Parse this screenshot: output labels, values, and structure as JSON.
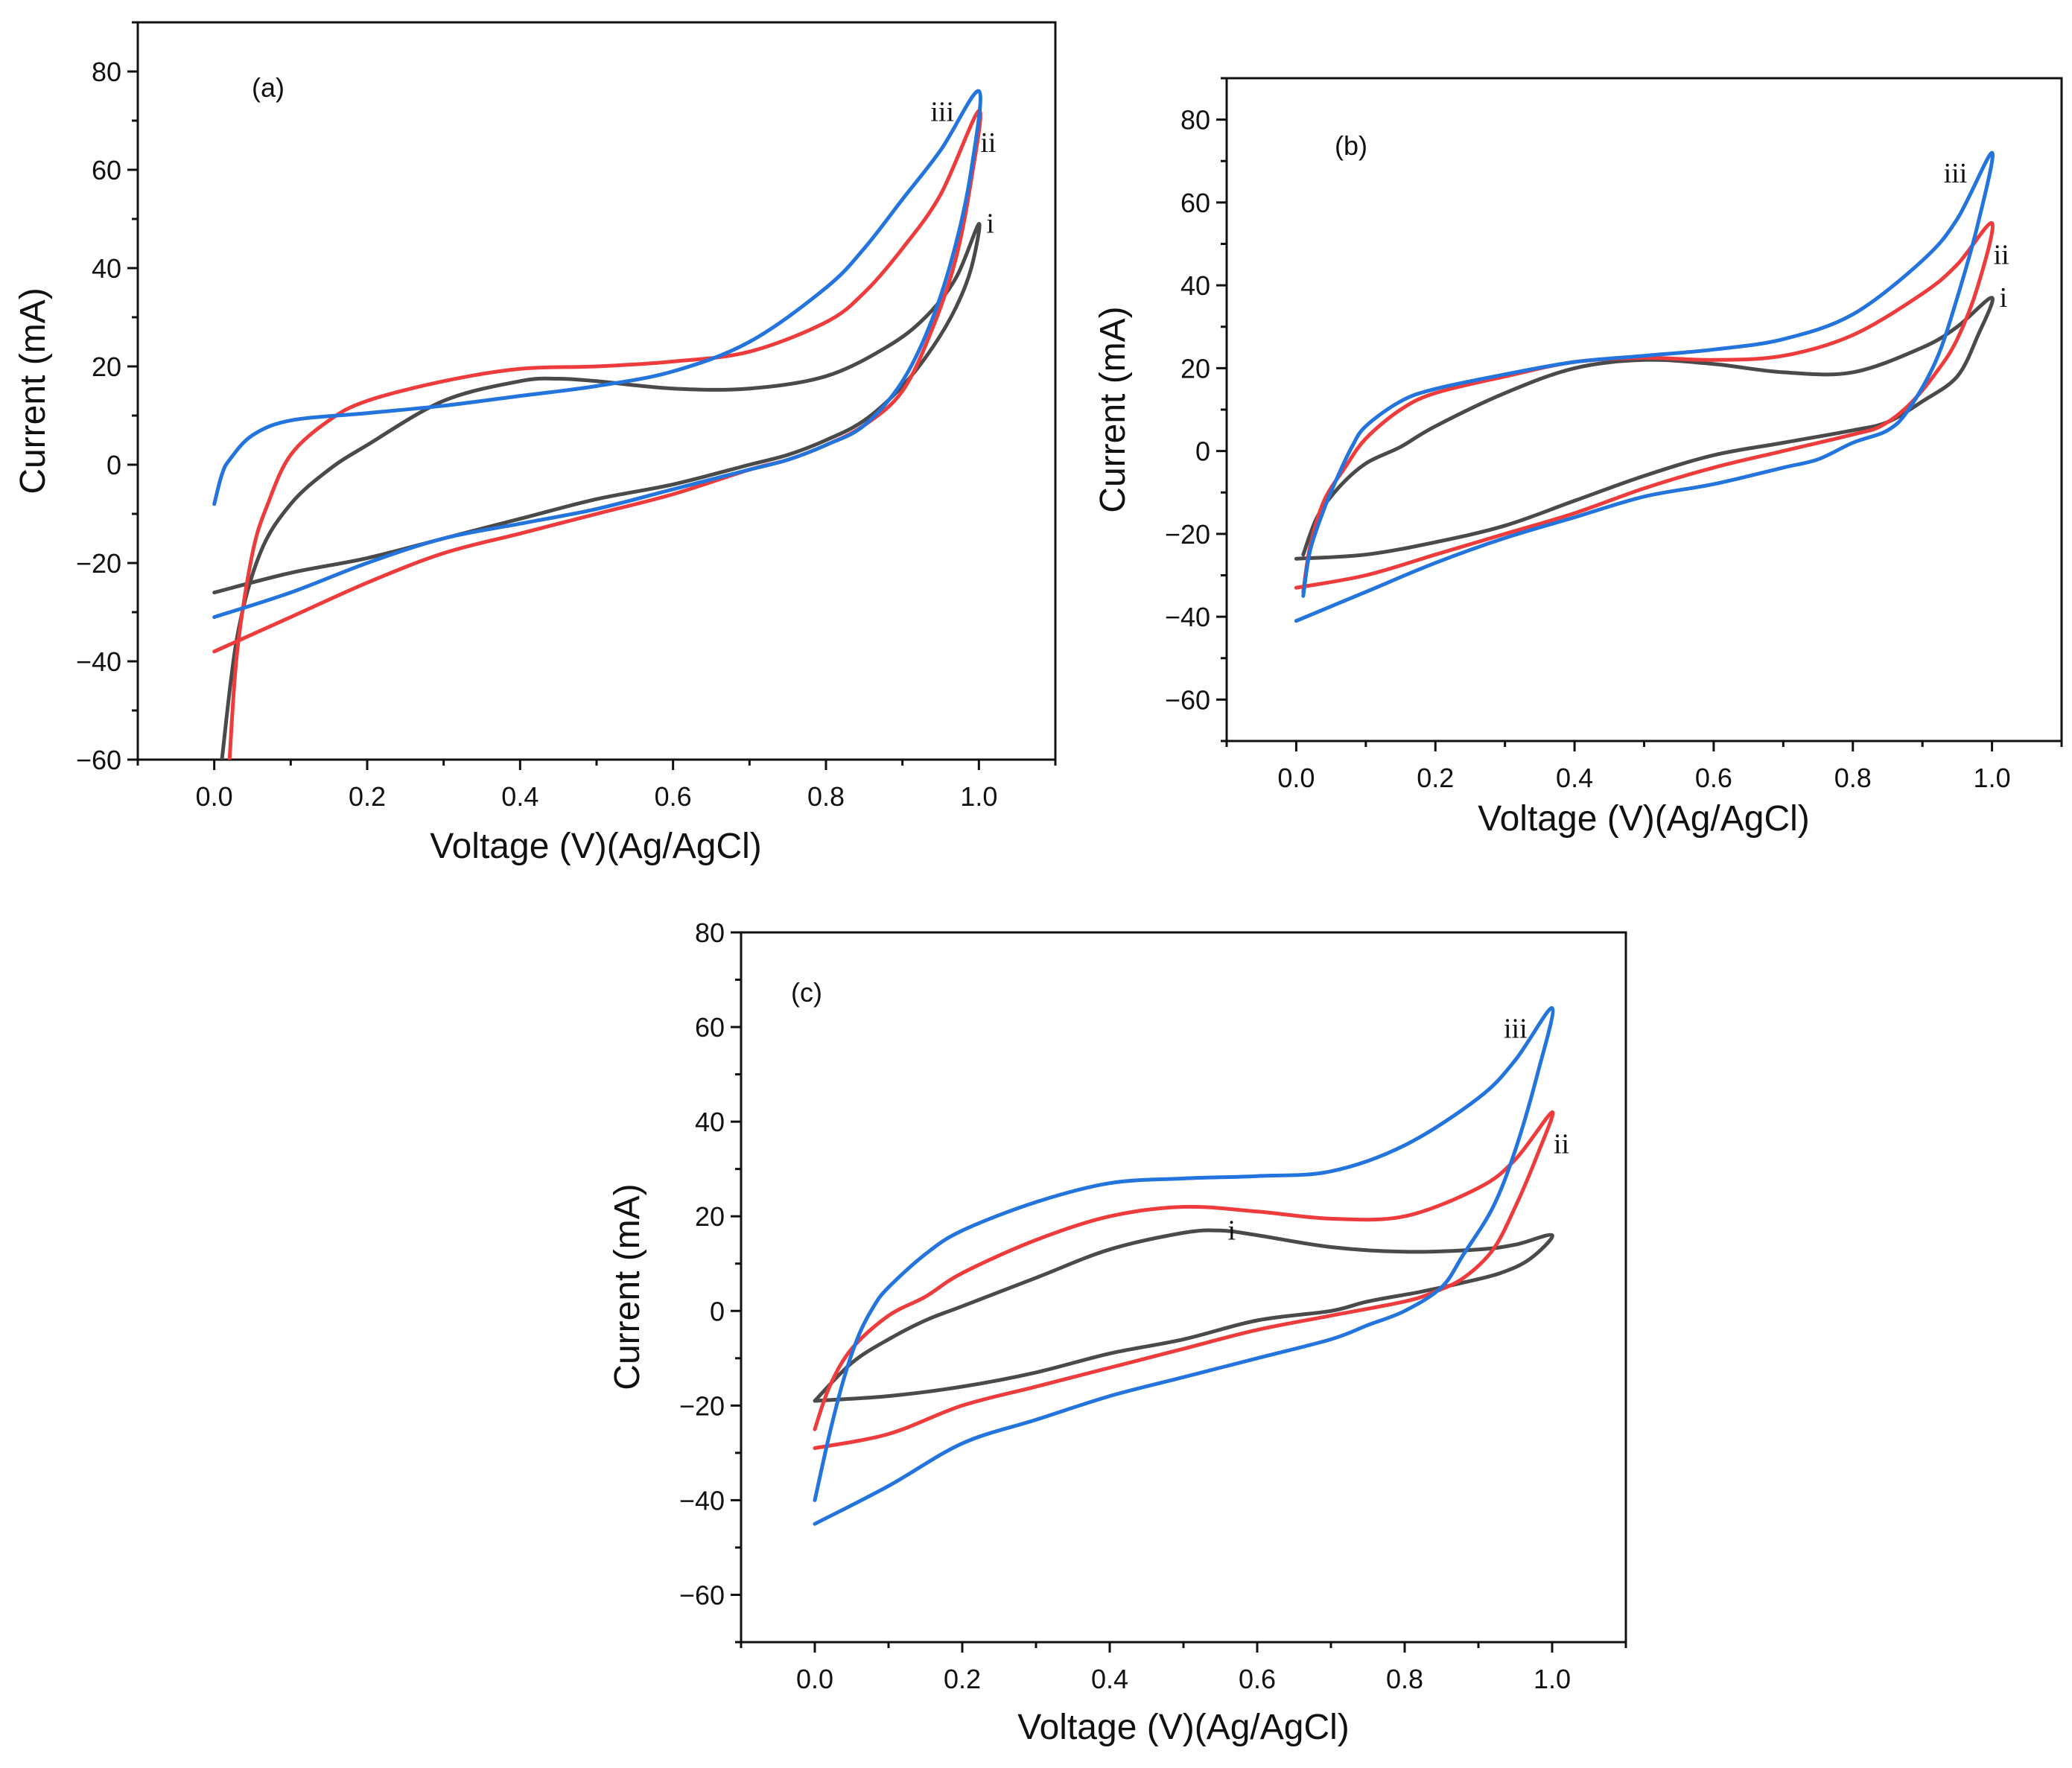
{
  "chart_data": [
    {
      "type": "line",
      "panel_label": "(a)",
      "xlabel": "Voltage (V)(Ag/AgCl)",
      "ylabel": "Current (mA)",
      "xlim": [
        -0.1,
        1.1
      ],
      "ylim": [
        -60,
        90
      ],
      "xticks": [
        0.0,
        0.2,
        0.4,
        0.6,
        0.8,
        1.0
      ],
      "xtick_labels": [
        "0.0",
        "0.2",
        "0.4",
        "0.6",
        "0.8",
        "1.0"
      ],
      "yticks": [
        -60,
        -40,
        -20,
        0,
        20,
        40,
        60,
        80
      ],
      "ytick_labels": [
        "−60",
        "−40",
        "−20",
        "0",
        "20",
        "40",
        "60",
        "80"
      ],
      "series": [
        {
          "name": "i",
          "label": "i",
          "color": "#4a4a4a",
          "x": [
            0.01,
            0.03,
            0.06,
            0.1,
            0.15,
            0.2,
            0.3,
            0.4,
            0.45,
            0.5,
            0.6,
            0.7,
            0.8,
            0.88,
            0.93,
            0.97,
            1.0,
            0.99,
            0.97,
            0.94,
            0.9,
            0.85,
            0.8,
            0.75,
            0.7,
            0.6,
            0.5,
            0.4,
            0.3,
            0.2,
            0.1,
            0.0
          ],
          "y": [
            -60,
            -35,
            -18,
            -8,
            -1,
            4,
            13,
            17,
            17.5,
            17,
            15.5,
            15.5,
            18,
            24,
            30,
            38,
            49,
            40,
            32,
            24,
            16,
            9,
            5,
            2,
            0,
            -4,
            -7,
            -11,
            -15,
            -19,
            -22,
            -26
          ]
        },
        {
          "name": "ii",
          "label": "ii",
          "color": "#ee3b3b",
          "x": [
            0.02,
            0.03,
            0.05,
            0.07,
            0.1,
            0.15,
            0.2,
            0.3,
            0.4,
            0.5,
            0.6,
            0.7,
            0.8,
            0.85,
            0.9,
            0.95,
            1.0,
            0.99,
            0.97,
            0.94,
            0.9,
            0.85,
            0.8,
            0.75,
            0.7,
            0.6,
            0.5,
            0.4,
            0.3,
            0.2,
            0.1,
            0.0
          ],
          "y": [
            -60,
            -38,
            -18,
            -8,
            2,
            9,
            13,
            17,
            19.5,
            20,
            21,
            23,
            29,
            35,
            44,
            55,
            72,
            58,
            42,
            28,
            15,
            8,
            4,
            1,
            -1,
            -6,
            -10,
            -14,
            -18,
            -24,
            -31,
            -38
          ]
        },
        {
          "name": "iii",
          "label": "iii",
          "color": "#2374dc",
          "x": [
            0.0,
            0.01,
            0.02,
            0.05,
            0.1,
            0.2,
            0.3,
            0.4,
            0.5,
            0.6,
            0.7,
            0.8,
            0.85,
            0.9,
            0.95,
            1.0,
            0.99,
            0.97,
            0.94,
            0.9,
            0.85,
            0.8,
            0.75,
            0.7,
            0.6,
            0.5,
            0.4,
            0.3,
            0.2,
            0.1,
            0.0
          ],
          "y": [
            -8,
            -2,
            1,
            6,
            9,
            10.5,
            12,
            14,
            16,
            19,
            25,
            36,
            44,
            54,
            64,
            76,
            60,
            45,
            30,
            17,
            8,
            4,
            1,
            -1,
            -5,
            -9,
            -12,
            -15,
            -20,
            -26,
            -31
          ]
        }
      ]
    },
    {
      "type": "line",
      "panel_label": "(b)",
      "xlabel": "Voltage (V)(Ag/AgCl)",
      "ylabel": "Current (mA)",
      "xlim": [
        -0.1,
        1.1
      ],
      "ylim": [
        -70,
        90
      ],
      "xticks": [
        0.0,
        0.2,
        0.4,
        0.6,
        0.8,
        1.0
      ],
      "xtick_labels": [
        "0.0",
        "0.2",
        "0.4",
        "0.6",
        "0.8",
        "1.0"
      ],
      "yticks": [
        -60,
        -40,
        -20,
        0,
        20,
        40,
        60,
        80
      ],
      "ytick_labels": [
        "−60",
        "−40",
        "−20",
        "0",
        "20",
        "40",
        "60",
        "80"
      ],
      "series": [
        {
          "name": "i",
          "label": "i",
          "color": "#4a4a4a",
          "x": [
            0.01,
            0.03,
            0.06,
            0.1,
            0.15,
            0.2,
            0.3,
            0.4,
            0.5,
            0.6,
            0.7,
            0.8,
            0.9,
            0.95,
            1.0,
            0.98,
            0.95,
            0.9,
            0.85,
            0.8,
            0.7,
            0.6,
            0.5,
            0.4,
            0.3,
            0.2,
            0.1,
            0.0
          ],
          "y": [
            -25,
            -16,
            -9,
            -3,
            1,
            6,
            14,
            20,
            22,
            21,
            19,
            19,
            25,
            30,
            37,
            28,
            18,
            12,
            7,
            5,
            2,
            -1,
            -6,
            -12,
            -18,
            -22,
            -25,
            -26
          ]
        },
        {
          "name": "ii",
          "label": "ii",
          "color": "#ee3b3b",
          "x": [
            0.01,
            0.02,
            0.04,
            0.07,
            0.1,
            0.15,
            0.2,
            0.3,
            0.4,
            0.5,
            0.6,
            0.7,
            0.8,
            0.9,
            0.95,
            1.0,
            0.98,
            0.95,
            0.92,
            0.88,
            0.84,
            0.8,
            0.7,
            0.6,
            0.5,
            0.4,
            0.3,
            0.2,
            0.1,
            0.0
          ],
          "y": [
            -34,
            -23,
            -12,
            -4,
            3,
            10,
            14,
            18,
            21.5,
            22.5,
            22,
            23,
            28,
            38,
            45,
            55,
            40,
            27,
            19,
            11,
            6,
            4,
            0,
            -4,
            -9,
            -15,
            -20,
            -25,
            -30,
            -33
          ]
        },
        {
          "name": "iii",
          "label": "iii",
          "color": "#2374dc",
          "x": [
            0.01,
            0.02,
            0.04,
            0.06,
            0.08,
            0.1,
            0.15,
            0.2,
            0.3,
            0.4,
            0.5,
            0.6,
            0.7,
            0.8,
            0.9,
            0.95,
            1.0,
            0.98,
            0.95,
            0.92,
            0.88,
            0.85,
            0.8,
            0.75,
            0.7,
            0.6,
            0.5,
            0.4,
            0.3,
            0.2,
            0.1,
            0.0
          ],
          "y": [
            -35,
            -24,
            -14,
            -6,
            1,
            6,
            12,
            15,
            18.5,
            21.5,
            23,
            24.5,
            27,
            33,
            46,
            56,
            72,
            55,
            37,
            22,
            10,
            5,
            2,
            -2,
            -4,
            -8,
            -11,
            -16,
            -21,
            -27,
            -34,
            -41
          ]
        }
      ]
    },
    {
      "type": "line",
      "panel_label": "(c)",
      "xlabel": "Voltage (V)(Ag/AgCl)",
      "ylabel": "Current (mA)",
      "xlim": [
        -0.1,
        1.1
      ],
      "ylim": [
        -70,
        80
      ],
      "xticks": [
        0.0,
        0.2,
        0.4,
        0.6,
        0.8,
        1.0
      ],
      "xtick_labels": [
        "0.0",
        "0.2",
        "0.4",
        "0.6",
        "0.8",
        "1.0"
      ],
      "yticks": [
        -60,
        -40,
        -20,
        0,
        20,
        40,
        60,
        80
      ],
      "ytick_labels": [
        "−60",
        "−40",
        "−20",
        "0",
        "20",
        "40",
        "60",
        "80"
      ],
      "series": [
        {
          "name": "i",
          "label": "i",
          "color": "#4a4a4a",
          "x": [
            0.0,
            0.05,
            0.1,
            0.15,
            0.2,
            0.3,
            0.4,
            0.5,
            0.55,
            0.6,
            0.7,
            0.8,
            0.9,
            0.95,
            1.0,
            0.97,
            0.93,
            0.88,
            0.82,
            0.75,
            0.7,
            0.6,
            0.5,
            0.4,
            0.3,
            0.2,
            0.1,
            0.0
          ],
          "y": [
            -19,
            -11,
            -6,
            -2,
            1,
            7,
            13,
            16.5,
            17,
            16,
            13.5,
            12.5,
            13,
            14,
            16,
            11,
            8,
            6,
            4,
            2,
            0,
            -2,
            -6,
            -9,
            -13,
            -16,
            -18,
            -19
          ]
        },
        {
          "name": "ii",
          "label": "ii",
          "color": "#ee3b3b",
          "x": [
            0.0,
            0.02,
            0.05,
            0.1,
            0.15,
            0.2,
            0.3,
            0.4,
            0.5,
            0.6,
            0.7,
            0.8,
            0.9,
            0.95,
            1.0,
            0.98,
            0.95,
            0.92,
            0.88,
            0.84,
            0.8,
            0.7,
            0.6,
            0.5,
            0.4,
            0.3,
            0.2,
            0.1,
            0.0
          ],
          "y": [
            -25,
            -16,
            -8,
            -1,
            3,
            8,
            15,
            20,
            22,
            21,
            19.5,
            20,
            26,
            32,
            42,
            33,
            22,
            13,
            7,
            4,
            2,
            -1,
            -4,
            -8,
            -12,
            -16,
            -20,
            -26,
            -29
          ]
        },
        {
          "name": "iii",
          "label": "iii",
          "color": "#2374dc",
          "x": [
            0.0,
            0.02,
            0.04,
            0.06,
            0.08,
            0.1,
            0.15,
            0.2,
            0.3,
            0.4,
            0.5,
            0.6,
            0.7,
            0.8,
            0.9,
            0.95,
            1.0,
            0.98,
            0.95,
            0.92,
            0.88,
            0.85,
            0.8,
            0.75,
            0.7,
            0.6,
            0.5,
            0.4,
            0.3,
            0.2,
            0.1,
            0.0
          ],
          "y": [
            -40,
            -26,
            -14,
            -5,
            1,
            5,
            12,
            17,
            23,
            27,
            28,
            28.5,
            29.5,
            35,
            45,
            53,
            64,
            50,
            34,
            22,
            12,
            5,
            0,
            -3,
            -6,
            -10,
            -14,
            -18,
            -23,
            -28,
            -37,
            -45
          ]
        }
      ]
    }
  ]
}
